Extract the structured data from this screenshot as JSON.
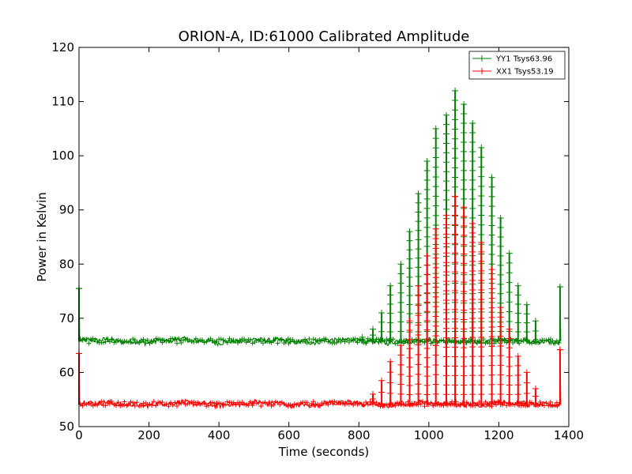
{
  "chart_data": {
    "type": "line",
    "title": "ORION-A, ID:61000 Calibrated Amplitude",
    "xlabel": "Time (seconds)",
    "ylabel": "Power in Kelvin",
    "xlim": [
      0,
      1400
    ],
    "ylim": [
      50,
      120
    ],
    "xticks": [
      "0",
      "200",
      "400",
      "600",
      "800",
      "1000",
      "1200",
      "1400"
    ],
    "yticks": [
      "50",
      "60",
      "70",
      "80",
      "90",
      "100",
      "110",
      "120"
    ],
    "grid": false,
    "legend_position": "top-right",
    "series": [
      {
        "name": "YY1 Tsys63.96",
        "color": "#008000",
        "marker": "+",
        "baseline": 65.8,
        "start": {
          "x": 0,
          "y": 75.5
        },
        "end": {
          "x": 1375,
          "y": 75.8
        },
        "spikes": [
          {
            "x": 810,
            "y": 66.5
          },
          {
            "x": 840,
            "y": 68
          },
          {
            "x": 865,
            "y": 71
          },
          {
            "x": 890,
            "y": 76
          },
          {
            "x": 920,
            "y": 80
          },
          {
            "x": 945,
            "y": 86
          },
          {
            "x": 970,
            "y": 93
          },
          {
            "x": 995,
            "y": 99
          },
          {
            "x": 1020,
            "y": 105
          },
          {
            "x": 1050,
            "y": 107.5
          },
          {
            "x": 1075,
            "y": 112
          },
          {
            "x": 1100,
            "y": 109.5
          },
          {
            "x": 1125,
            "y": 106
          },
          {
            "x": 1150,
            "y": 101.5
          },
          {
            "x": 1180,
            "y": 96
          },
          {
            "x": 1205,
            "y": 88.5
          },
          {
            "x": 1230,
            "y": 82
          },
          {
            "x": 1255,
            "y": 76
          },
          {
            "x": 1280,
            "y": 72.5
          },
          {
            "x": 1305,
            "y": 69.5
          }
        ]
      },
      {
        "name": "XX1 Tsys53.19",
        "color": "#ff0000",
        "marker": "+",
        "baseline": 54.2,
        "start": {
          "x": 0,
          "y": 63.5
        },
        "end": {
          "x": 1375,
          "y": 64.2
        },
        "spikes": [
          {
            "x": 840,
            "y": 56
          },
          {
            "x": 865,
            "y": 58.5
          },
          {
            "x": 890,
            "y": 62
          },
          {
            "x": 920,
            "y": 65
          },
          {
            "x": 945,
            "y": 69.5
          },
          {
            "x": 970,
            "y": 76
          },
          {
            "x": 995,
            "y": 81.5
          },
          {
            "x": 1020,
            "y": 86.5
          },
          {
            "x": 1050,
            "y": 89
          },
          {
            "x": 1075,
            "y": 92.5
          },
          {
            "x": 1100,
            "y": 90.5
          },
          {
            "x": 1125,
            "y": 87.5
          },
          {
            "x": 1150,
            "y": 84
          },
          {
            "x": 1180,
            "y": 79
          },
          {
            "x": 1205,
            "y": 72
          },
          {
            "x": 1230,
            "y": 68
          },
          {
            "x": 1255,
            "y": 63
          },
          {
            "x": 1280,
            "y": 60
          },
          {
            "x": 1305,
            "y": 57
          }
        ]
      }
    ]
  }
}
